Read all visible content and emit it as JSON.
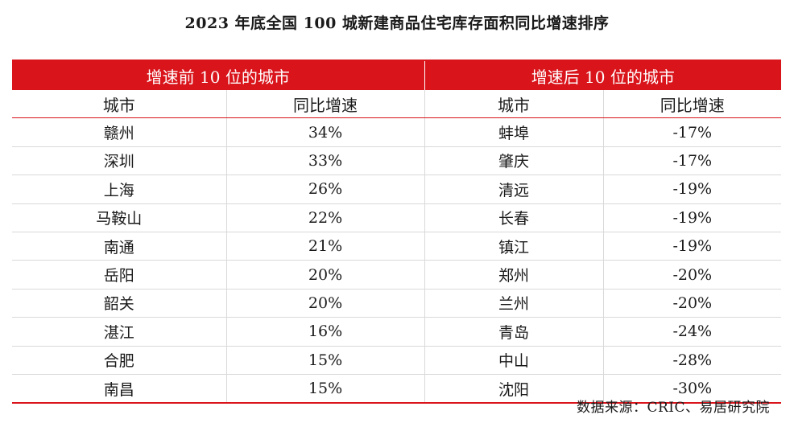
{
  "title": "2023 年底全国 100 城新建商品住宅库存面积同比增速排序",
  "table": {
    "group_left": "增速前 10 位的城市",
    "group_right": "增速后 10 位的城市",
    "col_city": "城市",
    "col_growth": "同比增速",
    "rows": [
      {
        "top_city": "赣州",
        "top_growth": "34%",
        "bottom_city": "蚌埠",
        "bottom_growth": "-17%"
      },
      {
        "top_city": "深圳",
        "top_growth": "33%",
        "bottom_city": "肇庆",
        "bottom_growth": "-17%"
      },
      {
        "top_city": "上海",
        "top_growth": "26%",
        "bottom_city": "清远",
        "bottom_growth": "-19%"
      },
      {
        "top_city": "马鞍山",
        "top_growth": "22%",
        "bottom_city": "长春",
        "bottom_growth": "-19%"
      },
      {
        "top_city": "南通",
        "top_growth": "21%",
        "bottom_city": "镇江",
        "bottom_growth": "-19%"
      },
      {
        "top_city": "岳阳",
        "top_growth": "20%",
        "bottom_city": "郑州",
        "bottom_growth": "-20%"
      },
      {
        "top_city": "韶关",
        "top_growth": "20%",
        "bottom_city": "兰州",
        "bottom_growth": "-20%"
      },
      {
        "top_city": "湛江",
        "top_growth": "16%",
        "bottom_city": "青岛",
        "bottom_growth": "-24%"
      },
      {
        "top_city": "合肥",
        "top_growth": "15%",
        "bottom_city": "中山",
        "bottom_growth": "-28%"
      },
      {
        "top_city": "南昌",
        "top_growth": "15%",
        "bottom_city": "沈阳",
        "bottom_growth": "-30%"
      }
    ]
  },
  "source": "数据来源：CRIC、易居研究院",
  "colors": {
    "header_red": "#d9141b",
    "grid_gray": "#d9d9d9"
  }
}
